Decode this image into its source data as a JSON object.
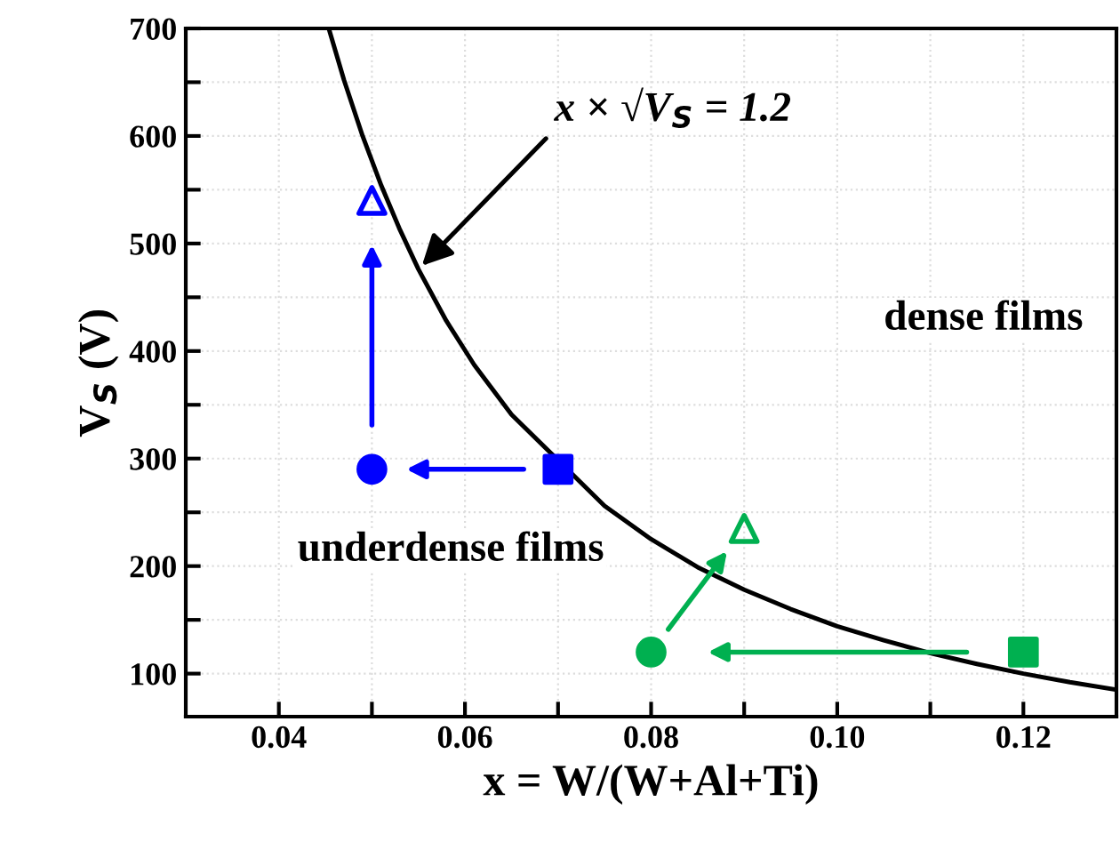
{
  "chart_data": {
    "type": "scatter",
    "xlabel": "x = W/(W+Al+Ti)",
    "ylabel": "V$_{S}$ (V)",
    "xlim": [
      0.03,
      0.13
    ],
    "xticks": [
      0.04,
      {
        "value": 0.05,
        "label": null
      },
      0.06,
      {
        "value": 0.07,
        "label": null
      },
      0.08,
      {
        "value": 0.09,
        "label": null
      },
      {
        "value": 0.1,
        "label": "0.10"
      },
      {
        "value": 0.11,
        "label": null
      },
      0.12
    ],
    "ylim": [
      60,
      700
    ],
    "yticks": [
      100,
      {
        "value": 150,
        "label": null
      },
      200,
      {
        "value": 250,
        "label": null
      },
      300,
      {
        "value": 350,
        "label": null
      },
      400,
      {
        "value": 450,
        "label": null
      },
      500,
      {
        "value": 550,
        "label": null
      },
      600,
      {
        "value": 650,
        "label": null
      },
      700
    ],
    "grid": true,
    "series": [
      {
        "type": "line",
        "color": "#000000",
        "marker": "none",
        "x": [
          0.0454,
          0.047,
          0.049,
          0.051,
          0.053,
          0.055,
          0.058,
          0.061,
          0.065,
          0.075,
          0.08,
          0.085,
          0.09,
          0.095,
          0.1,
          0.105,
          0.11,
          0.115,
          0.12,
          0.125,
          0.13
        ],
        "values": [
          699,
          652,
          600,
          554,
          513,
          476,
          428,
          387,
          341,
          256,
          225,
          199,
          178,
          160,
          144,
          131,
          119,
          109,
          100,
          92,
          85
        ]
      },
      {
        "color": "#0000ff",
        "marker": "square",
        "x": [
          0.07
        ],
        "values": [
          290
        ]
      },
      {
        "color": "#0000ff",
        "marker": "circle",
        "x": [
          0.05
        ],
        "values": [
          290
        ]
      },
      {
        "color": "#0000ff",
        "marker": "triangle",
        "x": [
          0.05
        ],
        "values": [
          540
        ]
      },
      {
        "color": "#00b050",
        "marker": "square",
        "x": [
          0.12
        ],
        "values": [
          120
        ]
      },
      {
        "color": "#00b050",
        "marker": "circle",
        "x": [
          0.08
        ],
        "values": [
          120
        ]
      },
      {
        "color": "#00b050",
        "marker": "triangle",
        "x": [
          0.09
        ],
        "values": [
          235
        ]
      }
    ],
    "annotations": [
      {
        "text": "x × √V$_{S}$ = 1.2",
        "x": 0.055,
        "y": 476
      },
      "dense films",
      "underdense films"
    ]
  }
}
